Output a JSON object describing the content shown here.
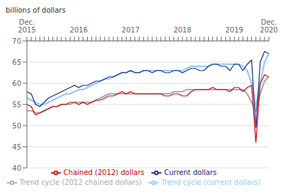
{
  "chart_data": {
    "type": "line",
    "y_label": "billions of dollars",
    "ylim": [
      40,
      70
    ],
    "yticks": [
      40,
      45,
      50,
      55,
      60,
      65,
      70
    ],
    "grid": true,
    "legend": "bottom",
    "categories": [
      "Dec.\n2015",
      null,
      null,
      null,
      null,
      null,
      null,
      null,
      null,
      null,
      null,
      null,
      "2016",
      null,
      null,
      null,
      null,
      null,
      null,
      null,
      null,
      null,
      null,
      null,
      "2017",
      null,
      null,
      null,
      null,
      null,
      null,
      null,
      null,
      null,
      null,
      null,
      "2018",
      null,
      null,
      null,
      null,
      null,
      null,
      null,
      null,
      null,
      null,
      null,
      "2019",
      null,
      null,
      null,
      null,
      null,
      null,
      null,
      "Dec.\n2020"
    ],
    "series": [
      {
        "name": "Trend cycle (current dollars)",
        "color": "#90caf9",
        "values": [
          56.5,
          56.0,
          55.5,
          55.0,
          55.0,
          55.5,
          56.0,
          56.5,
          57.0,
          57.5,
          57.5,
          58.0,
          58.5,
          58.5,
          59.0,
          59.5,
          60.0,
          60.5,
          61.0,
          61.0,
          61.5,
          62.0,
          62.5,
          62.5,
          63.0,
          62.5,
          62.5,
          63.0,
          63.0,
          63.0,
          63.0,
          63.0,
          63.0,
          63.0,
          63.0,
          63.0,
          63.0,
          63.5,
          64.0,
          64.0,
          64.0,
          64.0,
          64.0,
          64.5,
          64.5,
          64.5,
          64.5,
          64.5,
          64.5,
          64.5,
          64.0,
          63.0,
          60.0,
          54.5,
          60.0,
          65.0,
          67.0
        ]
      },
      {
        "name": "Trend cycle (2012 chained dollars)",
        "color": "#aaaaaa",
        "values": [
          53.5,
          53.5,
          53.0,
          53.0,
          53.5,
          54.0,
          54.5,
          54.5,
          55.0,
          55.0,
          55.0,
          55.5,
          55.5,
          55.5,
          55.5,
          55.5,
          56.0,
          56.5,
          57.0,
          57.5,
          57.5,
          57.5,
          57.5,
          57.5,
          57.5,
          57.5,
          57.5,
          57.5,
          57.5,
          57.5,
          57.5,
          57.5,
          57.5,
          57.5,
          58.0,
          58.0,
          58.0,
          58.5,
          58.5,
          58.5,
          58.5,
          58.5,
          58.5,
          58.5,
          58.5,
          58.5,
          58.5,
          58.5,
          58.5,
          58.5,
          58.5,
          57.5,
          55.5,
          53.5,
          57.5,
          60.5,
          61.5
        ]
      },
      {
        "name": "Current dollars",
        "color": "#1a237e",
        "values": [
          58.0,
          57.5,
          55.0,
          54.5,
          55.5,
          56.5,
          57.0,
          57.5,
          58.0,
          58.5,
          59.0,
          59.5,
          59.0,
          59.5,
          59.5,
          60.0,
          60.5,
          60.5,
          61.0,
          61.5,
          61.5,
          62.0,
          62.5,
          62.5,
          63.0,
          62.5,
          62.5,
          63.0,
          63.0,
          62.5,
          63.0,
          63.0,
          62.5,
          62.5,
          63.0,
          63.0,
          62.5,
          63.0,
          63.5,
          63.5,
          63.0,
          63.0,
          64.0,
          64.5,
          64.5,
          64.0,
          64.0,
          63.0,
          64.5,
          64.5,
          63.0,
          64.5,
          65.5,
          49.5,
          65.0,
          67.5,
          67.0
        ]
      },
      {
        "name": "Chained (2012) dollars",
        "color": "#cc0000",
        "values": [
          55.0,
          54.5,
          52.5,
          53.0,
          53.5,
          54.0,
          54.5,
          54.5,
          55.0,
          55.0,
          55.5,
          55.5,
          55.0,
          55.5,
          55.0,
          55.5,
          56.0,
          56.0,
          56.5,
          57.0,
          57.0,
          57.5,
          58.0,
          57.5,
          58.0,
          57.5,
          57.5,
          57.5,
          57.5,
          57.5,
          57.5,
          57.5,
          57.0,
          57.0,
          57.5,
          57.5,
          57.0,
          57.0,
          58.0,
          58.5,
          58.5,
          58.5,
          58.5,
          59.0,
          58.5,
          58.5,
          58.5,
          58.0,
          59.0,
          59.0,
          58.0,
          59.0,
          59.5,
          46.0,
          60.0,
          62.0,
          61.5
        ]
      }
    ]
  }
}
